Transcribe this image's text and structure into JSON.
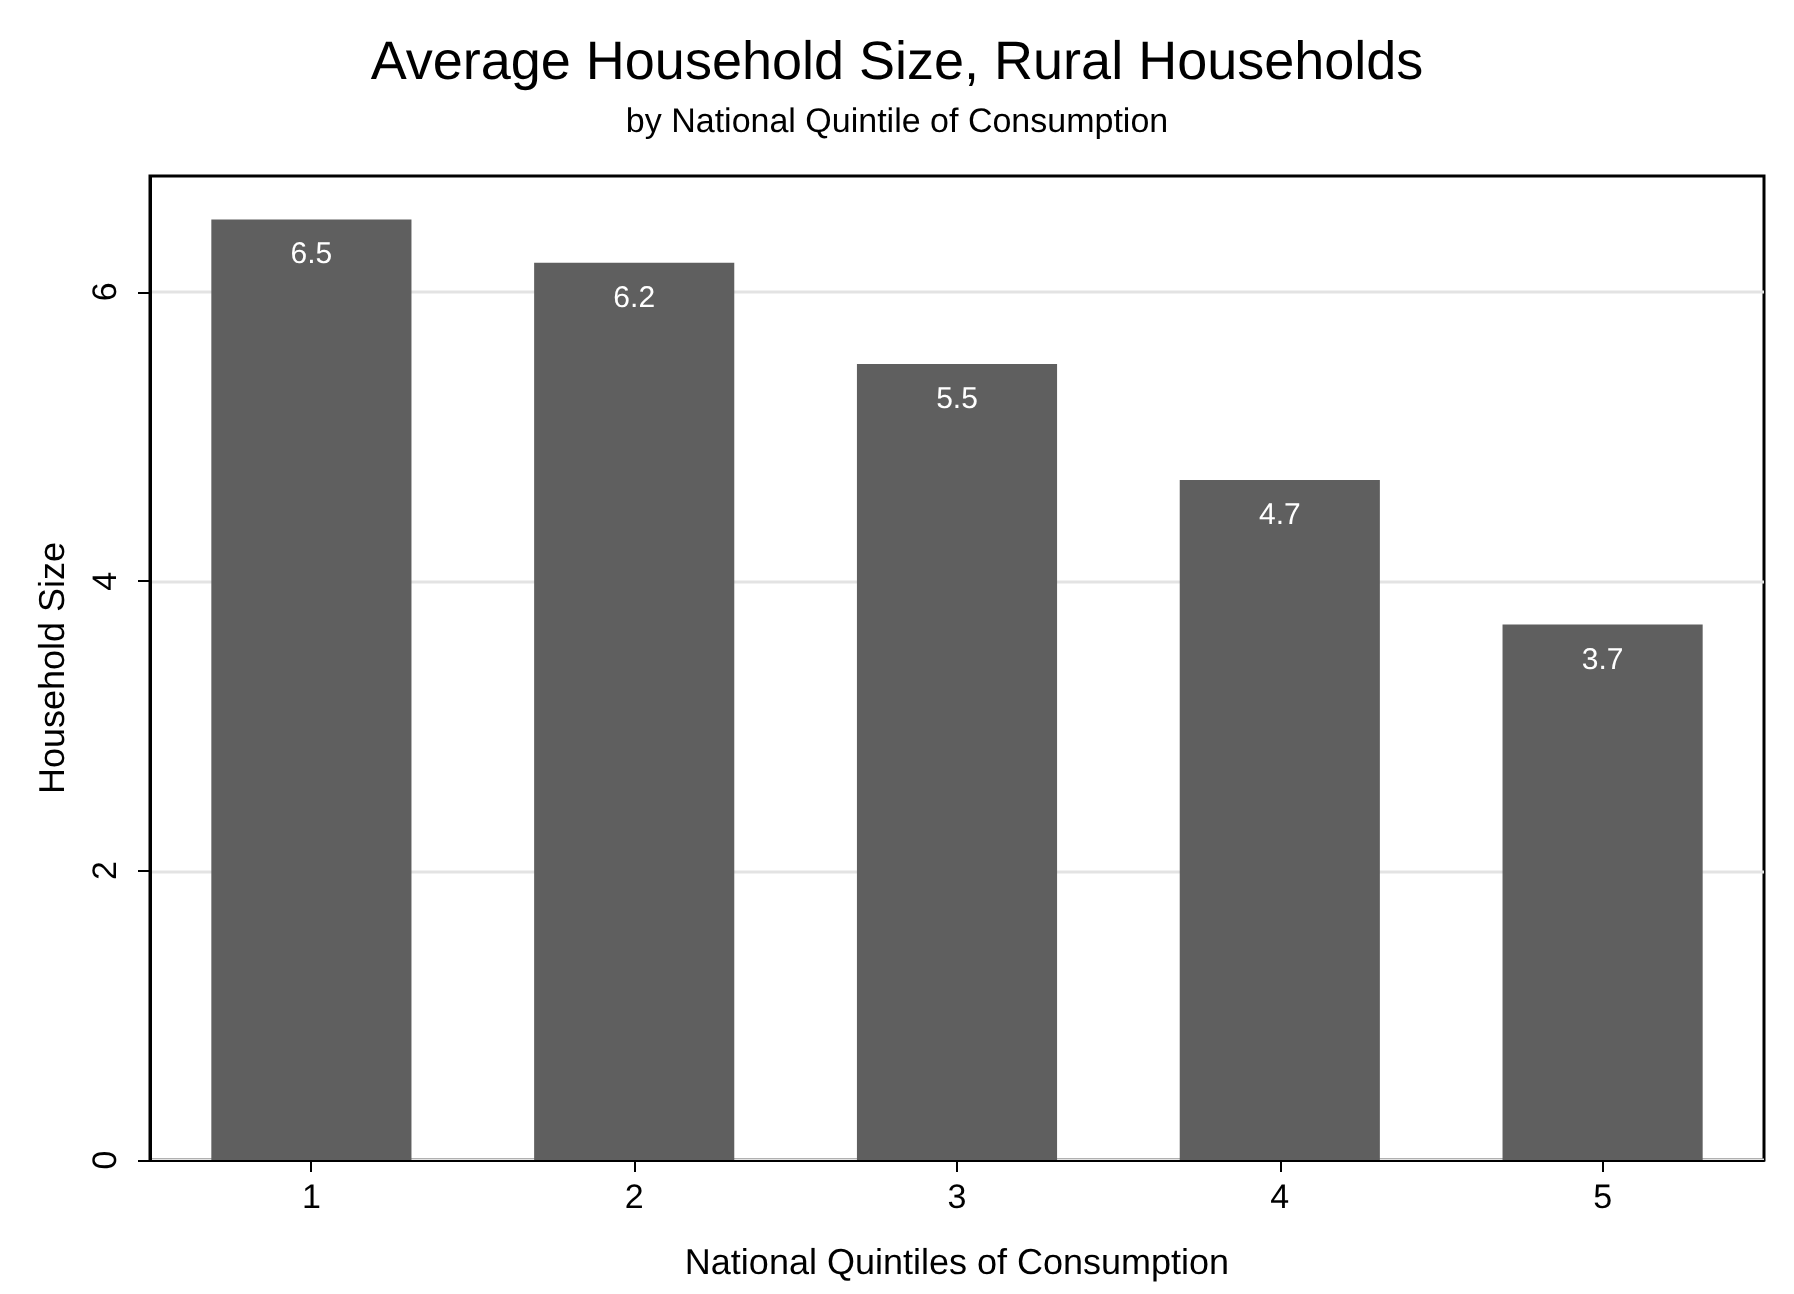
{
  "chart_data": {
    "type": "bar",
    "title": "Average Household Size, Rural Households",
    "subtitle": "by National Quintile of Consumption",
    "xlabel": "National Quintiles of Consumption",
    "ylabel": "Household Size",
    "categories": [
      "1",
      "2",
      "3",
      "4",
      "5"
    ],
    "values": [
      6.5,
      6.2,
      5.5,
      4.7,
      3.7
    ],
    "color": "#5f5f5f",
    "ylim": [
      0,
      6.8
    ],
    "yticks": [
      0,
      2,
      4,
      6
    ],
    "grid": "y",
    "data_labels": true
  }
}
